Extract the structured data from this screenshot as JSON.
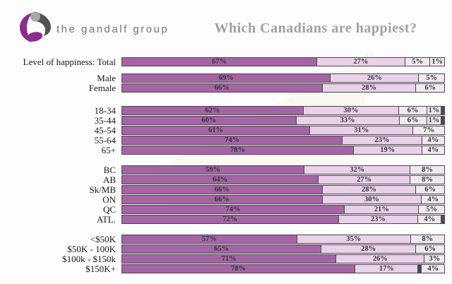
{
  "header": {
    "logo_text": "the gandalf group",
    "title": "Which Canadians are happiest?"
  },
  "chart_data": {
    "type": "bar",
    "subtype": "horizontal-stacked",
    "title": "Which Canadians are happiest?",
    "value_format": "percent",
    "xlim": [
      0,
      100
    ],
    "grid": false,
    "legend": "none",
    "colors": {
      "dark": "#a565a4",
      "light": "#e9d1e9",
      "pale": "#f0e9ef",
      "dgray": "#4f4a52"
    },
    "brand_purple": "#8b2d8b",
    "groups": [
      {
        "rows": [
          {
            "label": "Level of happiness: Total",
            "segments": [
              {
                "v": 67,
                "t": "67%",
                "c": "dark"
              },
              {
                "v": 27,
                "t": "27%",
                "c": "light"
              },
              {
                "v": 5,
                "t": "5%",
                "c": "pale"
              },
              {
                "v": 1,
                "t": "1%",
                "c": "pale"
              }
            ]
          }
        ]
      },
      {
        "rows": [
          {
            "label": "Male",
            "segments": [
              {
                "v": 69,
                "t": "69%",
                "c": "dark"
              },
              {
                "v": 26,
                "t": "26%",
                "c": "light"
              },
              {
                "v": 5,
                "t": "5%",
                "c": "pale"
              }
            ]
          },
          {
            "label": "Female",
            "segments": [
              {
                "v": 66,
                "t": "66%",
                "c": "dark"
              },
              {
                "v": 28,
                "t": "28%",
                "c": "light"
              },
              {
                "v": 6,
                "t": "6%",
                "c": "pale"
              }
            ]
          }
        ]
      },
      {
        "rows": [
          {
            "label": "18-34",
            "segments": [
              {
                "v": 62,
                "t": "62%",
                "c": "dark"
              },
              {
                "v": 30,
                "t": "30%",
                "c": "light"
              },
              {
                "v": 6,
                "t": "6%",
                "c": "pale"
              },
              {
                "v": 1,
                "t": "1%",
                "c": "pale"
              },
              {
                "v": 1,
                "t": "",
                "c": "dgray"
              }
            ]
          },
          {
            "label": "35-44",
            "segments": [
              {
                "v": 60,
                "t": "60%",
                "c": "dark"
              },
              {
                "v": 33,
                "t": "33%",
                "c": "light"
              },
              {
                "v": 6,
                "t": "6%",
                "c": "pale"
              },
              {
                "v": 1,
                "t": "1%",
                "c": "pale"
              },
              {
                "v": 1,
                "t": "",
                "c": "dgray"
              }
            ]
          },
          {
            "label": "45-54",
            "segments": [
              {
                "v": 61,
                "t": "61%",
                "c": "dark"
              },
              {
                "v": 31,
                "t": "31%",
                "c": "light"
              },
              {
                "v": 7,
                "t": "7%",
                "c": "pale"
              }
            ]
          },
          {
            "label": "55-64",
            "segments": [
              {
                "v": 74,
                "t": "74%",
                "c": "dark"
              },
              {
                "v": 23,
                "t": "23%",
                "c": "light"
              },
              {
                "v": 4,
                "t": "4%",
                "c": "pale"
              }
            ]
          },
          {
            "label": "65+",
            "segments": [
              {
                "v": 78,
                "t": "78%",
                "c": "dark"
              },
              {
                "v": 19,
                "t": "19%",
                "c": "light"
              },
              {
                "v": 4,
                "t": "4%",
                "c": "pale"
              }
            ]
          }
        ]
      },
      {
        "rows": [
          {
            "label": "BC",
            "segments": [
              {
                "v": 59,
                "t": "59%",
                "c": "dark"
              },
              {
                "v": 32,
                "t": "32%",
                "c": "light"
              },
              {
                "v": 8,
                "t": "8%",
                "c": "pale"
              }
            ]
          },
          {
            "label": "AB",
            "segments": [
              {
                "v": 64,
                "t": "64%",
                "c": "dark"
              },
              {
                "v": 27,
                "t": "27%",
                "c": "light"
              },
              {
                "v": 8,
                "t": "8%",
                "c": "pale"
              }
            ]
          },
          {
            "label": "Sk/MB",
            "segments": [
              {
                "v": 66,
                "t": "66%",
                "c": "dark"
              },
              {
                "v": 28,
                "t": "28%",
                "c": "light"
              },
              {
                "v": 6,
                "t": "6%",
                "c": "pale"
              }
            ]
          },
          {
            "label": "ON",
            "segments": [
              {
                "v": 66,
                "t": "66%",
                "c": "dark"
              },
              {
                "v": 30,
                "t": "30%",
                "c": "light"
              },
              {
                "v": 4,
                "t": "4%",
                "c": "pale"
              }
            ]
          },
          {
            "label": "QC",
            "segments": [
              {
                "v": 74,
                "t": "74%",
                "c": "dark"
              },
              {
                "v": 21,
                "t": "21%",
                "c": "light"
              },
              {
                "v": 5,
                "t": "5%",
                "c": "pale"
              }
            ]
          },
          {
            "label": "ATL.",
            "segments": [
              {
                "v": 72,
                "t": "72%",
                "c": "dark"
              },
              {
                "v": 23,
                "t": "23%",
                "c": "light"
              },
              {
                "v": 4,
                "t": "4%",
                "c": "pale"
              },
              {
                "v": 1,
                "t": "",
                "c": "dgray"
              }
            ]
          }
        ]
      },
      {
        "rows": [
          {
            "label": "<$50K",
            "segments": [
              {
                "v": 57,
                "t": "57%",
                "c": "dark"
              },
              {
                "v": 35,
                "t": "35%",
                "c": "light"
              },
              {
                "v": 8,
                "t": "8%",
                "c": "pale"
              }
            ]
          },
          {
            "label": "$50K - 100K",
            "segments": [
              {
                "v": 65,
                "t": "65%",
                "c": "dark"
              },
              {
                "v": 28,
                "t": "28%",
                "c": "light"
              },
              {
                "v": 6,
                "t": "6%",
                "c": "pale"
              }
            ]
          },
          {
            "label": "$100k - $150k",
            "segments": [
              {
                "v": 71,
                "t": "71%",
                "c": "dark"
              },
              {
                "v": 26,
                "t": "26%",
                "c": "light"
              },
              {
                "v": 3,
                "t": "3%",
                "c": "pale"
              }
            ]
          },
          {
            "label": "$150K+",
            "segments": [
              {
                "v": 78,
                "t": "78%",
                "c": "dark"
              },
              {
                "v": 17,
                "t": "17%",
                "c": "light"
              },
              {
                "v": 1,
                "t": "",
                "c": "dgray"
              },
              {
                "v": 4,
                "t": "4%",
                "c": "pale"
              }
            ]
          }
        ]
      }
    ]
  }
}
